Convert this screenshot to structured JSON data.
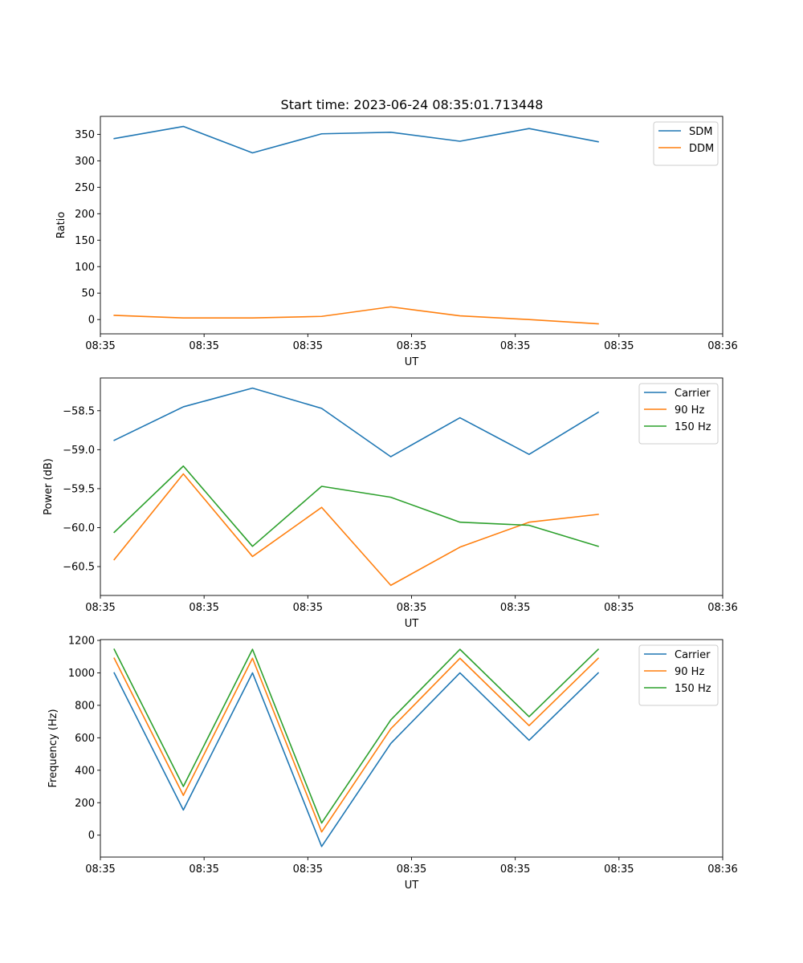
{
  "figure": {
    "title": "Start time: 2023-06-24 08:35:01.713448"
  },
  "chart_data": [
    {
      "type": "line",
      "title": "Start time: 2023-06-24 08:35:01.713448",
      "xlabel": "UT",
      "ylabel": "Ratio",
      "x": [
        1,
        2,
        3,
        4,
        5,
        6,
        7,
        8
      ],
      "xlim": [
        0.8,
        9.8
      ],
      "x_ticks": [
        1,
        2.5,
        4,
        5.5,
        7,
        8.5,
        10
      ],
      "x_tick_positions": [
        0.8,
        2.3,
        3.8,
        5.3,
        6.8,
        8.3,
        9.8
      ],
      "x_tick_labels": [
        "08:35",
        "08:35",
        "08:35",
        "08:35",
        "08:35",
        "08:35",
        "08:36"
      ],
      "ylim": [
        -27,
        384
      ],
      "y_ticks": [
        0,
        50,
        100,
        150,
        200,
        250,
        300,
        350
      ],
      "y_tick_labels": [
        "0",
        "50",
        "100",
        "150",
        "200",
        "250",
        "300",
        "350"
      ],
      "legend": "top-right",
      "series": [
        {
          "name": "SDM",
          "color": "#1f77b4",
          "values": [
            342,
            365,
            315,
            351,
            354,
            337,
            361,
            336
          ]
        },
        {
          "name": "DDM",
          "color": "#ff7f0e",
          "values": [
            8,
            3,
            3,
            6,
            24,
            7,
            0,
            -8
          ]
        }
      ]
    },
    {
      "type": "line",
      "xlabel": "UT",
      "ylabel": "Power (dB)",
      "x": [
        1,
        2,
        3,
        4,
        5,
        6,
        7,
        8
      ],
      "xlim": [
        0.8,
        9.8
      ],
      "x_tick_positions": [
        0.8,
        2.3,
        3.8,
        5.3,
        6.8,
        8.3,
        9.8
      ],
      "x_tick_labels": [
        "08:35",
        "08:35",
        "08:35",
        "08:35",
        "08:35",
        "08:35",
        "08:36"
      ],
      "ylim": [
        -60.87,
        -58.08
      ],
      "y_ticks": [
        -60.5,
        -60.0,
        -59.5,
        -59.0,
        -58.5
      ],
      "y_tick_labels": [
        "−60.5",
        "−60.0",
        "−59.5",
        "−59.0",
        "−58.5"
      ],
      "legend": "top-right",
      "series": [
        {
          "name": "Carrier",
          "color": "#1f77b4",
          "values": [
            -58.88,
            -58.45,
            -58.21,
            -58.47,
            -59.09,
            -58.59,
            -59.06,
            -58.52
          ]
        },
        {
          "name": "90 Hz",
          "color": "#ff7f0e",
          "values": [
            -60.41,
            -59.31,
            -60.37,
            -59.74,
            -60.74,
            -60.25,
            -59.93,
            -59.83
          ]
        },
        {
          "name": "150 Hz",
          "color": "#2ca02c",
          "values": [
            -60.06,
            -59.21,
            -60.24,
            -59.47,
            -59.61,
            -59.93,
            -59.97,
            -60.24
          ]
        }
      ]
    },
    {
      "type": "line",
      "xlabel": "UT",
      "ylabel": "Frequency (Hz)",
      "x": [
        1,
        2,
        3,
        4,
        5,
        6,
        7,
        8
      ],
      "xlim": [
        0.8,
        9.8
      ],
      "x_tick_positions": [
        0.8,
        2.3,
        3.8,
        5.3,
        6.8,
        8.3,
        9.8
      ],
      "x_tick_labels": [
        "08:35",
        "08:35",
        "08:35",
        "08:35",
        "08:35",
        "08:35",
        "08:36"
      ],
      "ylim": [
        -135,
        1205
      ],
      "y_ticks": [
        0,
        200,
        400,
        600,
        800,
        1000,
        1200
      ],
      "y_tick_labels": [
        "0",
        "200",
        "400",
        "600",
        "800",
        "1000",
        "1200"
      ],
      "legend": "top-right",
      "series": [
        {
          "name": "Carrier",
          "color": "#1f77b4",
          "values": [
            1000,
            155,
            1000,
            -70,
            565,
            1000,
            585,
            1000
          ]
        },
        {
          "name": "90 Hz",
          "color": "#ff7f0e",
          "values": [
            1090,
            245,
            1090,
            20,
            655,
            1090,
            675,
            1090
          ]
        },
        {
          "name": "150 Hz",
          "color": "#2ca02c",
          "values": [
            1145,
            300,
            1145,
            75,
            710,
            1145,
            730,
            1145
          ]
        }
      ]
    }
  ]
}
